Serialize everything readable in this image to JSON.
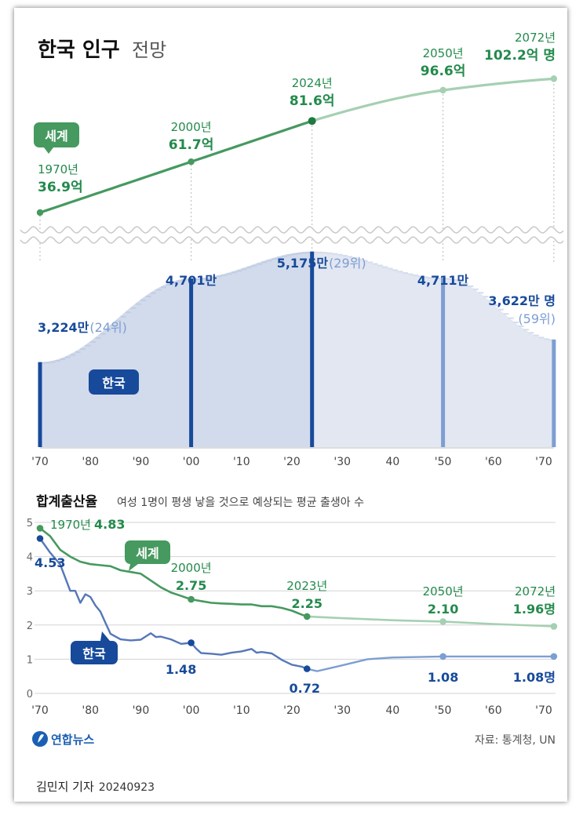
{
  "title": {
    "main": "한국 인구",
    "sub": "전망"
  },
  "colors": {
    "world": "#46995f",
    "world_light": "#a5d0b2",
    "world_text": "#238a4c",
    "korea": "#174a9a",
    "korea_light": "#7d9ed2",
    "korea_fill": "#d2dbec",
    "korea_fill_light": "#e2e7f2",
    "grid": "#d3d3d3",
    "axis_text": "#444444"
  },
  "chart_data": [
    {
      "type": "line",
      "title": "",
      "series": [
        {
          "name": "세계",
          "x": [
            1970,
            2000,
            2024,
            2050,
            2072
          ],
          "values": [
            36.9,
            61.7,
            81.6,
            96.6,
            102.2
          ]
        }
      ],
      "labels": [
        {
          "year": "1970년",
          "value": "36.9억"
        },
        {
          "year": "2000년",
          "value": "61.7억"
        },
        {
          "year": "2024년",
          "value": "81.6억"
        },
        {
          "year": "2050년",
          "value": "96.6억"
        },
        {
          "year": "2072년",
          "value": "102.2억 명"
        }
      ]
    },
    {
      "type": "area",
      "series": [
        {
          "name": "한국",
          "x": [
            1970,
            2000,
            2024,
            2050,
            2072
          ],
          "values": [
            3224,
            4701,
            5175,
            4711,
            3622
          ]
        }
      ],
      "labels": [
        {
          "value": "3,224만",
          "note": "(24위)"
        },
        {
          "value": "4,701만",
          "note": ""
        },
        {
          "value": "5,175만",
          "note": "(29위)"
        },
        {
          "value": "4,711만",
          "note": ""
        },
        {
          "value": "3,622만 명",
          "note": "(59위)"
        }
      ],
      "x_ticks": [
        "'70",
        "'80",
        "'90",
        "'00",
        "'10",
        "'20",
        "'30",
        "40",
        "'50",
        "'60",
        "'70"
      ]
    },
    {
      "type": "line",
      "title": "합계출산율",
      "subtitle": "여성 1명이 평생 낳을 것으로 예상되는 평균 출생아 수",
      "ylim": [
        0,
        5
      ],
      "y_ticks": [
        "0",
        "1",
        "2",
        "3",
        "4",
        "5"
      ],
      "x_ticks": [
        "'70",
        "'80",
        "'90",
        "'00",
        "'10",
        "'20",
        "'30",
        "40",
        "'50",
        "'60",
        "'70"
      ],
      "series": [
        {
          "name": "세계",
          "x": [
            1970,
            1972,
            1974,
            1976,
            1978,
            1980,
            1982,
            1984,
            1986,
            1988,
            1990,
            1992,
            1994,
            1996,
            1998,
            2000,
            2002,
            2004,
            2006,
            2008,
            2010,
            2012,
            2014,
            2016,
            2018,
            2020,
            2022,
            2023,
            2030,
            2040,
            2050,
            2060,
            2072
          ],
          "values": [
            4.83,
            4.6,
            4.2,
            4.0,
            3.85,
            3.78,
            3.75,
            3.72,
            3.6,
            3.55,
            3.5,
            3.3,
            3.1,
            2.95,
            2.85,
            2.75,
            2.7,
            2.65,
            2.63,
            2.62,
            2.6,
            2.6,
            2.55,
            2.55,
            2.5,
            2.42,
            2.3,
            2.25,
            2.2,
            2.14,
            2.1,
            2.03,
            1.96
          ]
        },
        {
          "name": "한국",
          "x": [
            1970,
            1972,
            1974,
            1976,
            1977,
            1978,
            1979,
            1980,
            1981,
            1982,
            1983,
            1984,
            1986,
            1988,
            1990,
            1992,
            1993,
            1994,
            1996,
            1998,
            2000,
            2001,
            2002,
            2004,
            2006,
            2008,
            2010,
            2012,
            2013,
            2014,
            2016,
            2018,
            2020,
            2022,
            2023,
            2025,
            2030,
            2035,
            2040,
            2050,
            2060,
            2072
          ],
          "values": [
            4.53,
            4.12,
            3.77,
            3.0,
            3.0,
            2.65,
            2.9,
            2.82,
            2.57,
            2.39,
            2.06,
            1.74,
            1.58,
            1.55,
            1.57,
            1.76,
            1.65,
            1.66,
            1.58,
            1.45,
            1.48,
            1.31,
            1.18,
            1.16,
            1.13,
            1.19,
            1.23,
            1.3,
            1.19,
            1.21,
            1.17,
            0.98,
            0.84,
            0.78,
            0.72,
            0.65,
            0.82,
            1.0,
            1.05,
            1.08,
            1.08,
            1.08
          ]
        }
      ],
      "labels": {
        "world": [
          {
            "year": "1970년",
            "value": "4.83"
          },
          {
            "year": "2000년",
            "value": "2.75"
          },
          {
            "year": "2023년",
            "value": "2.25"
          },
          {
            "year": "2050년",
            "value": "2.10"
          },
          {
            "year": "2072년",
            "value": "1.96명"
          }
        ],
        "korea": [
          "4.53",
          "1.48",
          "0.72",
          "1.08",
          "1.08명"
        ]
      }
    }
  ],
  "logo": "연합뉴스",
  "source": "자료: 통계청, UN",
  "byline": {
    "reporter": "김민지 기자",
    "date": "20240923"
  }
}
